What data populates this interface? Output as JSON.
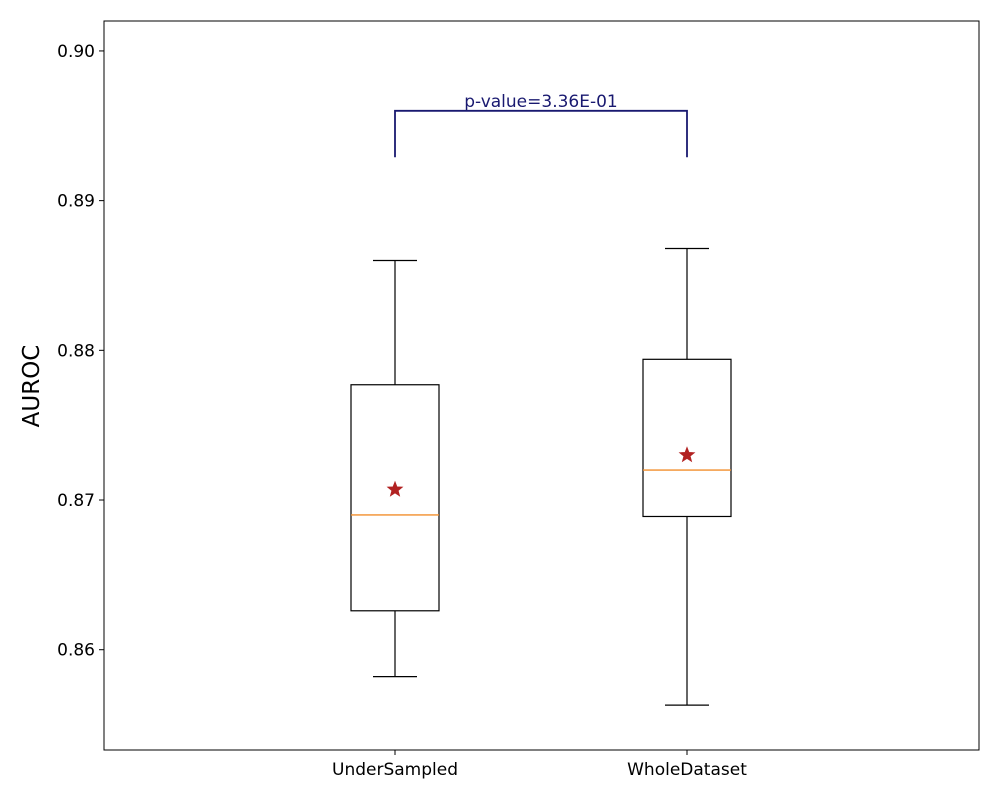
{
  "chart_data": {
    "type": "box",
    "title": "",
    "xlabel": "",
    "ylabel": "AUROC",
    "ylim": [
      0.8533,
      0.902
    ],
    "y_ticks": [
      {
        "value": 0.86,
        "label": "0.86"
      },
      {
        "value": 0.87,
        "label": "0.87"
      },
      {
        "value": 0.88,
        "label": "0.88"
      },
      {
        "value": 0.89,
        "label": "0.89"
      },
      {
        "value": 0.9,
        "label": "0.90"
      }
    ],
    "categories": [
      "UnderSampled",
      "WholeDataset"
    ],
    "boxes": [
      {
        "name": "UnderSampled",
        "whisker_low": 0.8582,
        "q1": 0.8626,
        "median": 0.869,
        "q3": 0.8777,
        "whisker_high": 0.886,
        "mean": 0.8707
      },
      {
        "name": "WholeDataset",
        "whisker_low": 0.8563,
        "q1": 0.8689,
        "median": 0.872,
        "q3": 0.8794,
        "whisker_high": 0.8868,
        "mean": 0.873
      }
    ],
    "annotation": {
      "text": "p-value=3.36E-01",
      "bracket_top": 0.896,
      "bracket_bottom": 0.8929,
      "color": "#191970"
    },
    "colors": {
      "box": "#000000",
      "median": "#f28e2b",
      "mean_marker": "#b22222"
    },
    "grid": false,
    "legend": "none"
  }
}
